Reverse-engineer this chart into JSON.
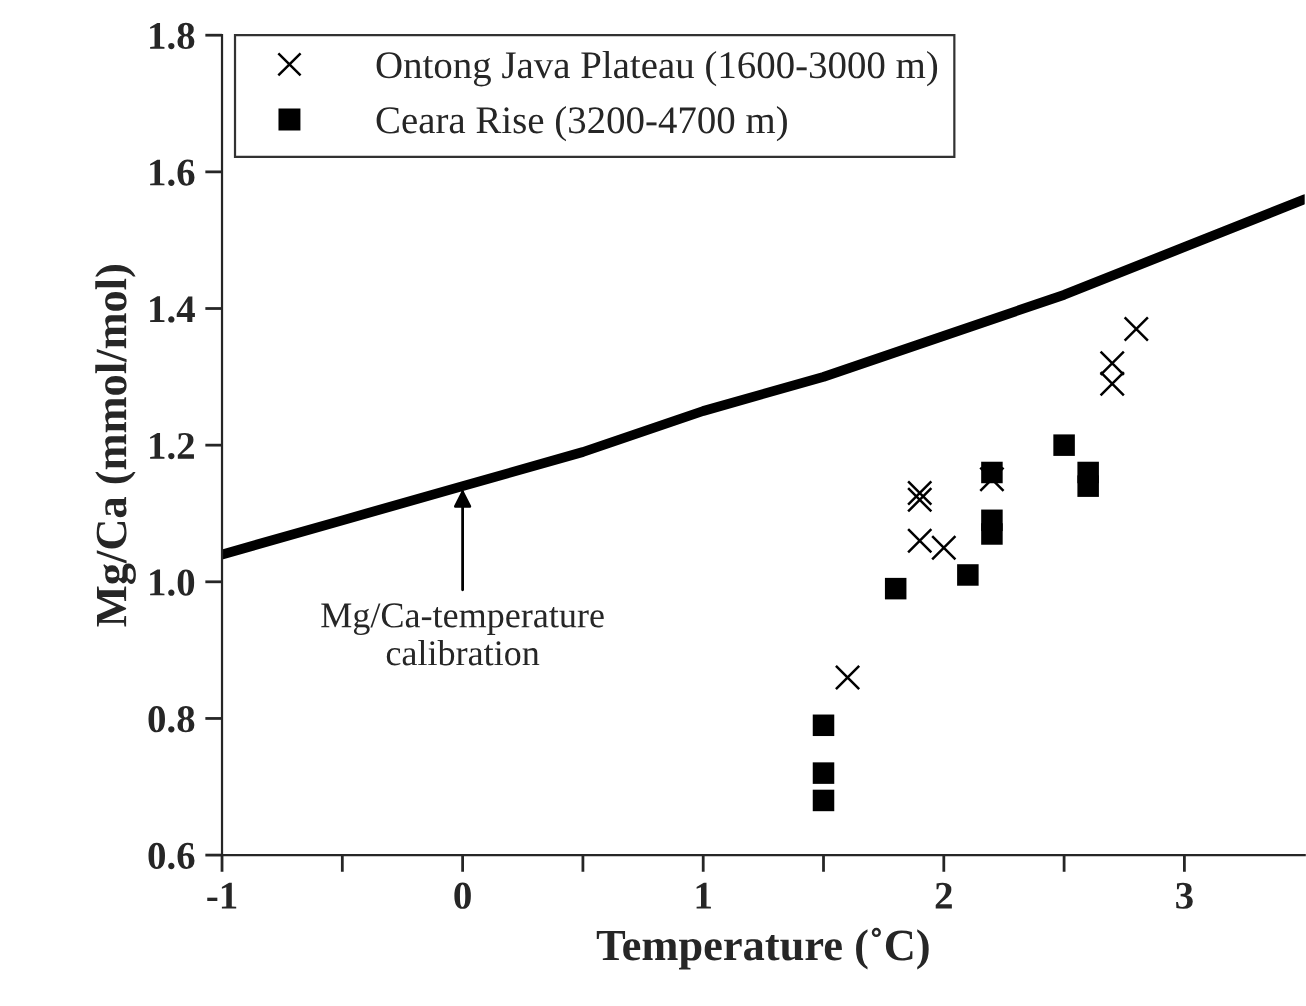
{
  "chart_data": {
    "type": "scatter",
    "xlabel": "Temperature (˚C)",
    "ylabel": "Mg/Ca (mmol/mol)",
    "xlim": [
      -1,
      3.5
    ],
    "ylim": [
      0.6,
      1.8
    ],
    "xticks": [
      -1,
      {
        "value": -0.5,
        "label": null
      },
      0,
      {
        "value": 0.5,
        "label": null
      },
      1,
      {
        "value": 1.5,
        "label": null
      },
      2,
      {
        "value": 2.5,
        "label": null
      },
      3
    ],
    "yticks": [
      0.6,
      0.8,
      {
        "value": 1,
        "label": "1.0"
      },
      1.2,
      1.4,
      1.6,
      1.8
    ],
    "legend": "top left",
    "grid": false,
    "series": [
      {
        "name": "Ontong Java Plateau (1600-3000 m)",
        "color": "#000000",
        "marker": "cross",
        "x": [
          1.6,
          1.9,
          1.9,
          1.9,
          2.0,
          2.2,
          2.7,
          2.7,
          2.8
        ],
        "values": [
          0.86,
          1.13,
          1.12,
          1.06,
          1.05,
          1.15,
          1.32,
          1.29,
          1.37
        ]
      },
      {
        "name": "Ceara Rise (3200-4700 m)",
        "color": "#000000",
        "marker": "square",
        "x": [
          1.5,
          1.5,
          1.5,
          1.8,
          2.1,
          2.2,
          2.2,
          2.2,
          2.5,
          2.6,
          2.6
        ],
        "values": [
          0.79,
          0.72,
          0.68,
          0.99,
          1.01,
          1.16,
          1.09,
          1.07,
          1.2,
          1.16,
          1.14
        ]
      },
      {
        "type": "line",
        "color": "#000000",
        "marker": "none",
        "line_style": "solid",
        "x": [
          -1,
          -0.5,
          0,
          0.5,
          1,
          1.5,
          2,
          2.5,
          3,
          3.5
        ],
        "values": [
          1.04,
          1.09,
          1.14,
          1.19,
          1.25,
          1.3,
          1.36,
          1.42,
          1.49,
          1.56
        ]
      }
    ],
    "annotations": [
      {
        "text": "Mg/Ca-temperature\ncalibration",
        "x": 0,
        "y": 1.14
      }
    ]
  }
}
